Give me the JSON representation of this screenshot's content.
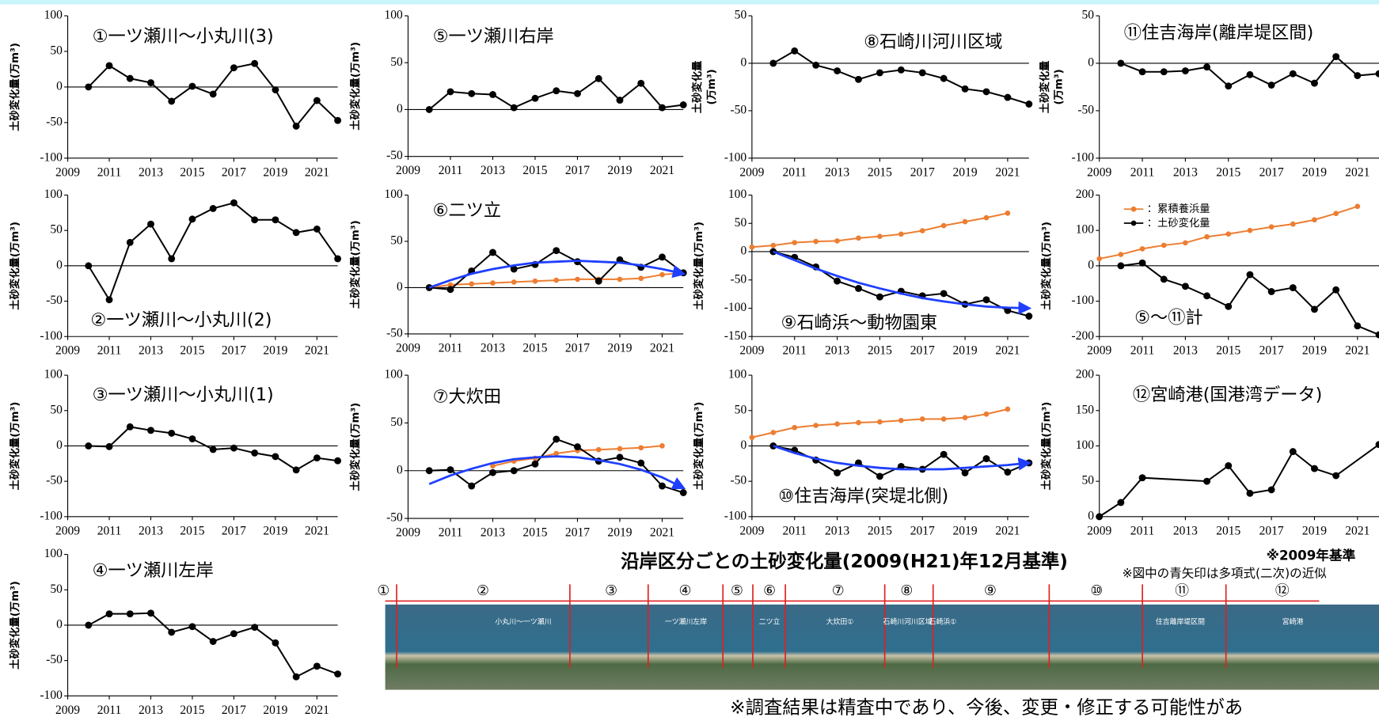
{
  "chart_data": [
    {
      "type": "line",
      "title": "①一ツ瀬川～小丸川(3)",
      "ylabel": "土砂変化量(万m³)",
      "xlim": [
        2009,
        2022
      ],
      "ylim": [
        -100,
        100
      ],
      "xticks": [
        2009,
        2011,
        2013,
        2015,
        2017,
        2019,
        2021
      ],
      "yticks": [
        -100,
        -50,
        0,
        50,
        100
      ],
      "series": [
        {
          "color": "#000000",
          "x": [
            2010,
            2011,
            2012,
            2013,
            2014,
            2015,
            2016,
            2017,
            2018,
            2019,
            2020,
            2021,
            2022
          ],
          "values": [
            0,
            30,
            12,
            6,
            -20,
            1,
            -10,
            27,
            33,
            -4,
            -55,
            -19,
            -47
          ]
        }
      ]
    },
    {
      "type": "line",
      "title": "②一ツ瀬川～小丸川(2)",
      "ylabel": "土砂変化量(万m³)",
      "xlim": [
        2009,
        2022
      ],
      "ylim": [
        -100,
        100
      ],
      "xticks": [
        2009,
        2011,
        2013,
        2015,
        2017,
        2019,
        2021
      ],
      "yticks": [
        -100,
        -50,
        0,
        50,
        100
      ],
      "series": [
        {
          "color": "#000000",
          "x": [
            2010,
            2011,
            2012,
            2013,
            2014,
            2015,
            2016,
            2017,
            2018,
            2019,
            2020,
            2021,
            2022
          ],
          "values": [
            0,
            -48,
            33,
            59,
            10,
            66,
            81,
            89,
            65,
            65,
            47,
            52,
            10
          ]
        }
      ]
    },
    {
      "type": "line",
      "title": "③一ツ瀬川～小丸川(1)",
      "ylabel": "土砂変化量(万m³)",
      "xlim": [
        2009,
        2022
      ],
      "ylim": [
        -100,
        100
      ],
      "xticks": [
        2009,
        2011,
        2013,
        2015,
        2017,
        2019,
        2021
      ],
      "yticks": [
        -100,
        -50,
        0,
        50,
        100
      ],
      "series": [
        {
          "color": "#000000",
          "x": [
            2010,
            2011,
            2012,
            2013,
            2014,
            2015,
            2016,
            2017,
            2018,
            2019,
            2020,
            2021,
            2022
          ],
          "values": [
            0,
            -1,
            27,
            22,
            18,
            10,
            -5,
            -3,
            -10,
            -15,
            -34,
            -17,
            -21
          ]
        }
      ]
    },
    {
      "type": "line",
      "title": "④一ツ瀬川左岸",
      "ylabel": "土砂変化量(万m³)",
      "xlim": [
        2009,
        2022
      ],
      "ylim": [
        -100,
        100
      ],
      "xticks": [
        2009,
        2011,
        2013,
        2015,
        2017,
        2019,
        2021
      ],
      "yticks": [
        -100,
        -50,
        0,
        50,
        100
      ],
      "series": [
        {
          "color": "#000000",
          "x": [
            2010,
            2011,
            2012,
            2013,
            2014,
            2015,
            2016,
            2017,
            2018,
            2019,
            2020,
            2021,
            2022
          ],
          "values": [
            0,
            16,
            16,
            17,
            -10,
            -2,
            -23,
            -12,
            -3,
            -25,
            -73,
            -58,
            -69
          ]
        }
      ]
    },
    {
      "type": "line",
      "title": "⑤一ツ瀬川右岸",
      "ylabel": "土砂変化量(万m³)",
      "xlim": [
        2009,
        2022
      ],
      "ylim": [
        -50,
        100
      ],
      "xticks": [
        2009,
        2011,
        2013,
        2015,
        2017,
        2019,
        2021
      ],
      "yticks": [
        -50,
        0,
        50,
        100
      ],
      "series": [
        {
          "color": "#000000",
          "x": [
            2010,
            2011,
            2012,
            2013,
            2014,
            2015,
            2016,
            2017,
            2018,
            2019,
            2020,
            2021,
            2022
          ],
          "values": [
            0,
            19,
            17,
            16,
            2,
            12,
            20,
            17,
            33,
            10,
            28,
            2,
            5
          ]
        }
      ]
    },
    {
      "type": "line",
      "title": "⑥二ツ立",
      "ylabel": "土砂変化量(万m³)",
      "xlim": [
        2009,
        2022
      ],
      "ylim": [
        -50,
        100
      ],
      "xticks": [
        2009,
        2011,
        2013,
        2015,
        2017,
        2019,
        2021
      ],
      "yticks": [
        -50,
        0,
        50,
        100
      ],
      "series": [
        {
          "color": "#ed7d31",
          "x": [
            2010,
            2011,
            2012,
            2013,
            2014,
            2015,
            2016,
            2017,
            2018,
            2019,
            2020,
            2021,
            2022
          ],
          "values": [
            0,
            3,
            4,
            5,
            6,
            7,
            8,
            9,
            9,
            9,
            10,
            14,
            16
          ]
        },
        {
          "color": "#000000",
          "x": [
            2010,
            2011,
            2012,
            2013,
            2014,
            2015,
            2016,
            2017,
            2018,
            2019,
            2020,
            2021,
            2022
          ],
          "values": [
            0,
            -2,
            18,
            38,
            20,
            25,
            40,
            28,
            7,
            30,
            22,
            33,
            16
          ]
        },
        {
          "color": "#1f3fff",
          "arrow": true,
          "x": [
            2010,
            2011,
            2012,
            2013,
            2014,
            2015,
            2016,
            2017,
            2018,
            2019,
            2020,
            2021,
            2022
          ],
          "values": [
            0,
            8,
            15,
            20,
            24,
            27,
            28,
            29,
            28,
            27,
            24,
            20,
            15
          ]
        }
      ]
    },
    {
      "type": "line",
      "title": "⑦大炊田",
      "ylabel": "土砂変化量(万m³)",
      "xlim": [
        2009,
        2022
      ],
      "ylim": [
        -50,
        100
      ],
      "xticks": [
        2009,
        2011,
        2013,
        2015,
        2017,
        2019,
        2021
      ],
      "yticks": [
        -50,
        0,
        50,
        100
      ],
      "series": [
        {
          "color": "#ed7d31",
          "x": [
            2013,
            2014,
            2015,
            2016,
            2017,
            2018,
            2019,
            2020,
            2021
          ],
          "values": [
            5,
            10,
            13,
            18,
            21,
            22,
            23,
            24,
            26
          ]
        },
        {
          "color": "#000000",
          "x": [
            2010,
            2011,
            2012,
            2013,
            2014,
            2015,
            2016,
            2017,
            2018,
            2019,
            2020,
            2021,
            2022
          ],
          "values": [
            0,
            1,
            -16,
            -2,
            0,
            7,
            33,
            25,
            10,
            14,
            8,
            -16,
            -23
          ]
        },
        {
          "color": "#1f3fff",
          "arrow": true,
          "x": [
            2010,
            2011,
            2012,
            2013,
            2014,
            2015,
            2016,
            2017,
            2018,
            2019,
            2020,
            2021,
            2022
          ],
          "values": [
            -14,
            -5,
            2,
            8,
            12,
            14,
            15,
            14,
            11,
            7,
            1,
            -7,
            -18
          ]
        }
      ]
    },
    {
      "type": "line",
      "title": "⑧石崎川河川区域",
      "ylabel": [
        "土砂変化量",
        "(万m³)"
      ],
      "xlim": [
        2009,
        2022
      ],
      "ylim": [
        -100,
        50
      ],
      "xticks": [
        2009,
        2011,
        2013,
        2015,
        2017,
        2019,
        2021
      ],
      "yticks": [
        -100,
        -50,
        0,
        50
      ],
      "series": [
        {
          "color": "#000000",
          "x": [
            2010,
            2011,
            2012,
            2013,
            2014,
            2015,
            2016,
            2017,
            2018,
            2019,
            2020,
            2021,
            2022
          ],
          "values": [
            0,
            13,
            -2,
            -8,
            -17,
            -10,
            -7,
            -10,
            -16,
            -27,
            -30,
            -36,
            -43
          ]
        }
      ]
    },
    {
      "type": "line",
      "title": "⑨石崎浜～動物園東",
      "ylabel": "土砂変化量(万m³)",
      "xlim": [
        2009,
        2022
      ],
      "ylim": [
        -150,
        100
      ],
      "xticks": [
        2009,
        2011,
        2013,
        2015,
        2017,
        2019,
        2021
      ],
      "yticks": [
        -150,
        -100,
        -50,
        0,
        50,
        100
      ],
      "series": [
        {
          "color": "#ed7d31",
          "x": [
            2009,
            2010,
            2011,
            2012,
            2013,
            2014,
            2015,
            2016,
            2017,
            2018,
            2019,
            2020,
            2021
          ],
          "values": [
            8,
            11,
            16,
            18,
            19,
            24,
            27,
            31,
            37,
            46,
            53,
            60,
            68
          ]
        },
        {
          "color": "#000000",
          "x": [
            2010,
            2011,
            2012,
            2013,
            2014,
            2015,
            2016,
            2017,
            2018,
            2019,
            2020,
            2021,
            2022
          ],
          "values": [
            0,
            -10,
            -27,
            -52,
            -65,
            -80,
            -70,
            -78,
            -74,
            -93,
            -85,
            -104,
            -114
          ]
        },
        {
          "color": "#1f3fff",
          "arrow": true,
          "x": [
            2010,
            2011,
            2012,
            2013,
            2014,
            2015,
            2016,
            2017,
            2018,
            2019,
            2020,
            2021,
            2022
          ],
          "values": [
            0,
            -15,
            -30,
            -43,
            -55,
            -65,
            -74,
            -82,
            -88,
            -93,
            -97,
            -99,
            -100
          ]
        }
      ]
    },
    {
      "type": "line",
      "title": "⑩住吉海岸(突堤北側)",
      "ylabel": "土砂変化量(万m³)",
      "xlim": [
        2009,
        2022
      ],
      "ylim": [
        -100,
        100
      ],
      "xticks": [
        2009,
        2011,
        2013,
        2015,
        2017,
        2019,
        2021
      ],
      "yticks": [
        -100,
        -50,
        0,
        50,
        100
      ],
      "series": [
        {
          "color": "#ed7d31",
          "x": [
            2009,
            2010,
            2011,
            2012,
            2013,
            2014,
            2015,
            2016,
            2017,
            2018,
            2019,
            2020,
            2021
          ],
          "values": [
            12,
            19,
            26,
            29,
            31,
            33,
            34,
            36,
            38,
            38,
            40,
            45,
            52
          ]
        },
        {
          "color": "#000000",
          "x": [
            2010,
            2011,
            2012,
            2013,
            2014,
            2015,
            2016,
            2017,
            2018,
            2019,
            2020,
            2021,
            2022
          ],
          "values": [
            0,
            -6,
            -20,
            -38,
            -24,
            -43,
            -29,
            -33,
            -12,
            -38,
            -18,
            -37,
            -24
          ]
        },
        {
          "color": "#1f3fff",
          "arrow": true,
          "x": [
            2010,
            2011,
            2012,
            2013,
            2014,
            2015,
            2016,
            2017,
            2018,
            2019,
            2020,
            2021,
            2022
          ],
          "values": [
            0,
            -10,
            -18,
            -24,
            -28,
            -31,
            -33,
            -33,
            -33,
            -31,
            -29,
            -27,
            -24
          ]
        }
      ]
    },
    {
      "type": "line",
      "title": "⑪住吉海岸(離岸堤区間)",
      "ylabel": [
        "土砂変化量",
        "(万m³)"
      ],
      "xlim": [
        2009,
        2022
      ],
      "ylim": [
        -100,
        50
      ],
      "xticks": [
        2009,
        2011,
        2013,
        2015,
        2017,
        2019,
        2021
      ],
      "yticks": [
        -100,
        -50,
        0,
        50
      ],
      "series": [
        {
          "color": "#000000",
          "x": [
            2010,
            2011,
            2012,
            2013,
            2014,
            2015,
            2016,
            2017,
            2018,
            2019,
            2020,
            2021,
            2022
          ],
          "values": [
            0,
            -9,
            -9,
            -8,
            -4,
            -24,
            -12,
            -23,
            -11,
            -21,
            7,
            -13,
            -11
          ]
        }
      ]
    },
    {
      "type": "line",
      "title": "⑤～⑪計",
      "ylabel": "土砂変化量(万m³)",
      "xlim": [
        2009,
        2022
      ],
      "ylim": [
        -200,
        200
      ],
      "xticks": [
        2009,
        2011,
        2013,
        2015,
        2017,
        2019,
        2021
      ],
      "yticks": [
        -200,
        -100,
        0,
        100,
        200
      ],
      "legend": "upper left",
      "series": [
        {
          "name": "：累積養浜量",
          "color": "#ed7d31",
          "x": [
            2009,
            2010,
            2011,
            2012,
            2013,
            2014,
            2015,
            2016,
            2017,
            2018,
            2019,
            2020,
            2021
          ],
          "values": [
            20,
            32,
            48,
            58,
            65,
            82,
            90,
            100,
            110,
            118,
            130,
            148,
            168
          ]
        },
        {
          "name": "：土砂変化量",
          "color": "#000000",
          "x": [
            2010,
            2011,
            2012,
            2013,
            2014,
            2015,
            2016,
            2017,
            2018,
            2019,
            2020,
            2021,
            2022
          ],
          "values": [
            0,
            8,
            -38,
            -58,
            -85,
            -115,
            -25,
            -73,
            -62,
            -123,
            -68,
            -170,
            -195
          ]
        }
      ]
    },
    {
      "type": "line",
      "title": "⑫宮崎港(国港湾データ)",
      "ylabel": "土砂変化量(万m³)",
      "xlim": [
        2009,
        2022
      ],
      "ylim": [
        0,
        200
      ],
      "xticks": [
        2009,
        2011,
        2013,
        2015,
        2017,
        2019,
        2021
      ],
      "yticks": [
        0,
        50,
        100,
        150,
        200
      ],
      "series": [
        {
          "color": "#000000",
          "x": [
            2009,
            2010,
            2011,
            2014,
            2015,
            2016,
            2017,
            2018,
            2019,
            2020,
            2022
          ],
          "values": [
            0,
            20,
            55,
            50,
            72,
            33,
            38,
            92,
            68,
            58,
            102
          ]
        }
      ]
    }
  ],
  "main_title": "沿岸区分ごとの土砂変化量(2009(H21)年12月基準)",
  "base_note": "※2009年基準",
  "arrow_note": "※図中の青矢印は多項式(二次)の近似",
  "footer_note": "※調査結果は精査中であり、今後、変更・修正する可能性があ",
  "map": {
    "segments": [
      "①",
      "②",
      "③",
      "④",
      "⑤",
      "⑥",
      "⑦",
      "⑧",
      "⑨",
      "⑩",
      "⑪",
      "⑫"
    ],
    "labels": [
      "小丸川～一ツ瀬川",
      "一ツ瀬川左岸",
      "二ツ立",
      "大炊田①",
      "石崎川河川区域",
      "石崎浜①",
      "住吉離岸堤区間",
      "宮崎港"
    ]
  }
}
